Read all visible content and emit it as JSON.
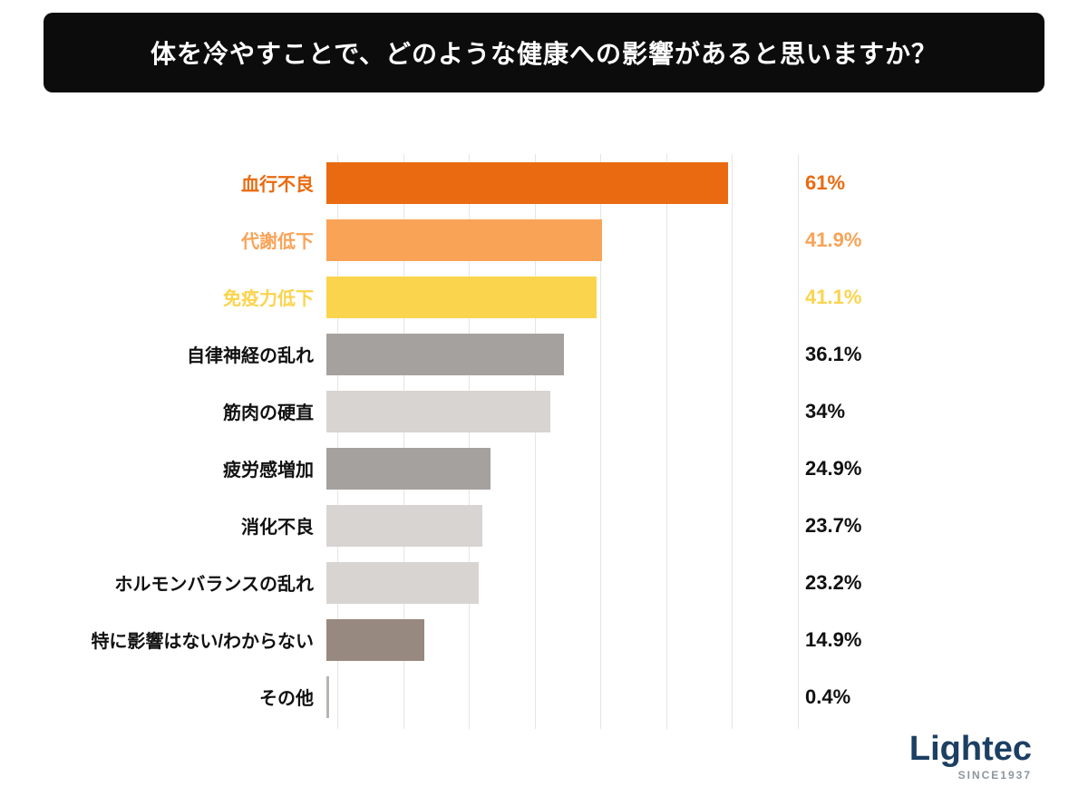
{
  "title": "体を冷やすことで、どのような健康への影響があると思いますか？",
  "chart_data": {
    "type": "bar",
    "orientation": "horizontal",
    "title": "体を冷やすことで、どのような健康への影響があると思いますか？",
    "categories": [
      "血行不良",
      "代謝低下",
      "免疫力低下",
      "自律神経の乱れ",
      "筋肉の硬直",
      "疲労感増加",
      "消化不良",
      "ホルモンバランスの乱れ",
      "特に影響はない/わからない",
      "その他"
    ],
    "values": [
      61,
      41.9,
      41.1,
      36.1,
      34,
      24.9,
      23.7,
      23.2,
      14.9,
      0.4
    ],
    "value_labels": [
      "61%",
      "41.9%",
      "41.1%",
      "36.1%",
      "34%",
      "24.9%",
      "23.7%",
      "23.2%",
      "14.9%",
      "0.4%"
    ],
    "bar_colors": [
      "#e96a10",
      "#f9a357",
      "#fbd44d",
      "#a5a19e",
      "#d8d4d2",
      "#a5a19e",
      "#d8d4d2",
      "#d8d4d2",
      "#97897f",
      "#b8b4b1"
    ],
    "label_colors": [
      "#e96a10",
      "#f9a357",
      "#fbd44d",
      "#111111",
      "#111111",
      "#111111",
      "#111111",
      "#111111",
      "#111111",
      "#111111"
    ],
    "value_label_colors": [
      "#e96a10",
      "#f9a357",
      "#fbd44d",
      "#111111",
      "#111111",
      "#111111",
      "#111111",
      "#111111",
      "#111111",
      "#111111"
    ],
    "xlim": [
      0,
      70
    ],
    "gridlines": [
      0,
      10,
      20,
      30,
      40,
      50,
      60,
      70
    ],
    "grid": true,
    "legend": "none"
  },
  "logo": {
    "name": "Lightec",
    "tagline": "SINCE1937",
    "name_color": "#1c3f63",
    "tagline_color": "#8e969c",
    "accent_color": "#e96a10"
  },
  "colors": {
    "banner_bg": "#0c0c0c",
    "banner_text": "#ffffff",
    "background": "#ffffff",
    "gridline": "#e7e5e3"
  }
}
